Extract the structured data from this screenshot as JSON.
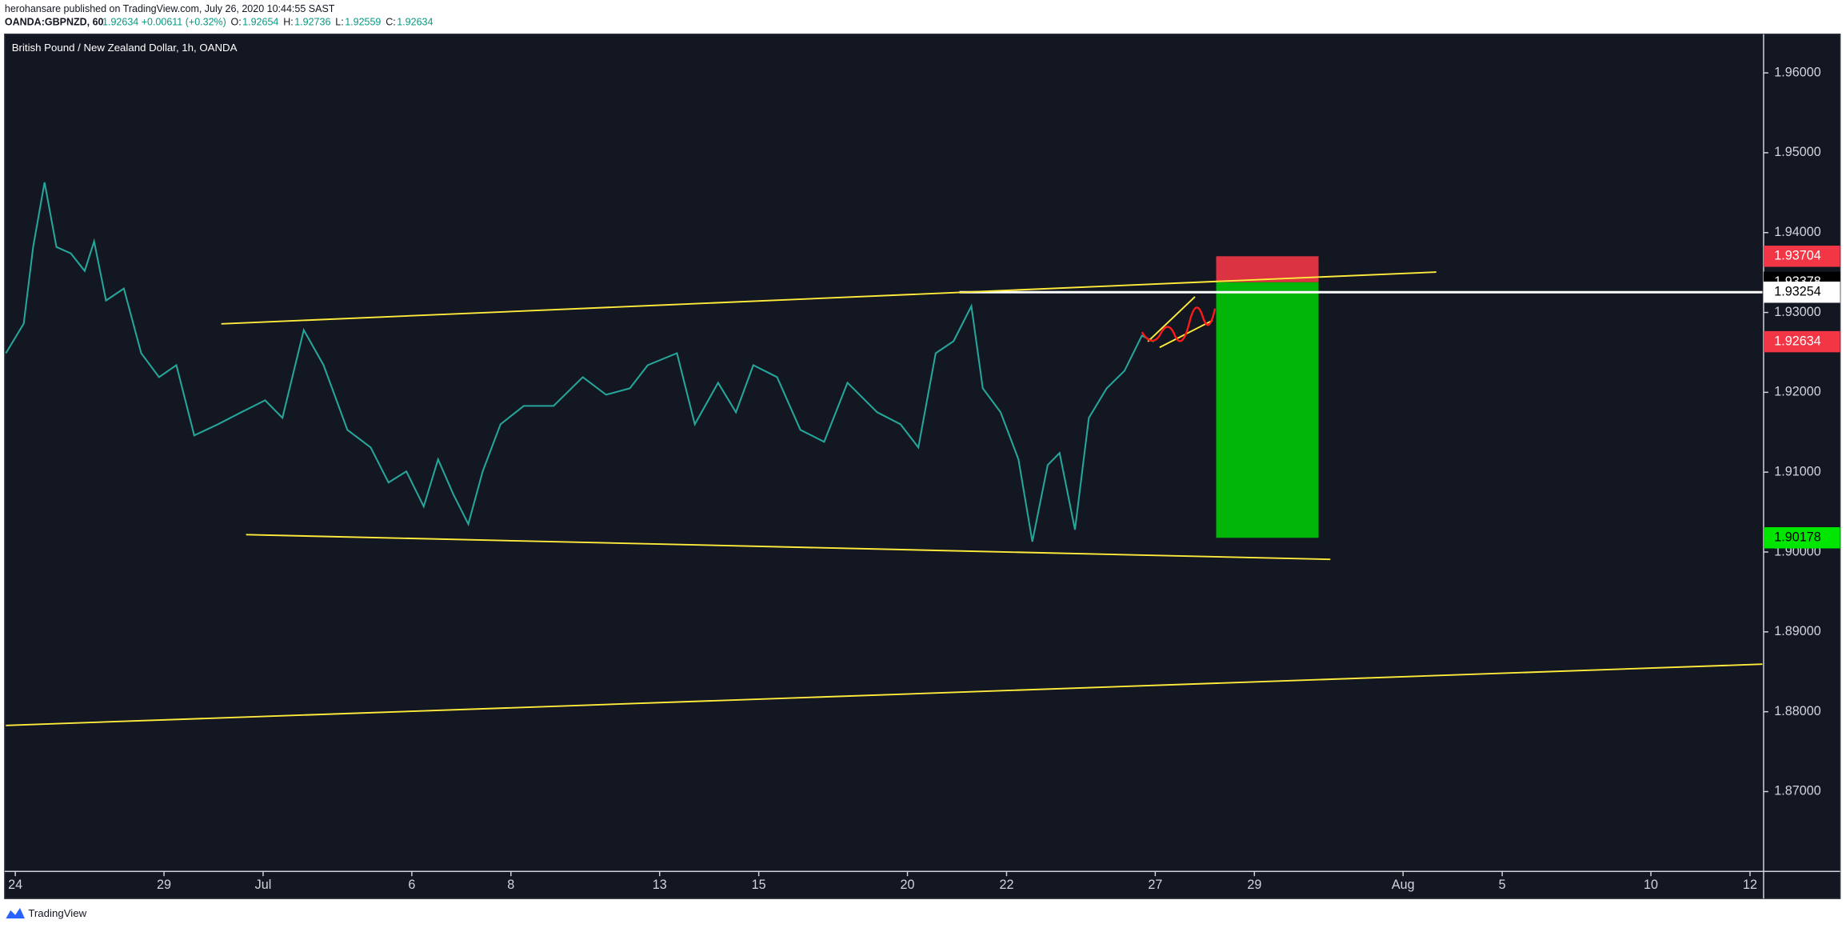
{
  "header": {
    "author_line": "herohansare published on TradingView.com, July 26, 2020 10:44:55 SAST",
    "symbol": "OANDA:GBPNZD, 60",
    "quote": "1.92634 +0.00611 (+0.32%)",
    "ohlc": [
      {
        "label": "O:",
        "value": "1.92654"
      },
      {
        "label": "H:",
        "value": "1.92736"
      },
      {
        "label": "L:",
        "value": "1.92559"
      },
      {
        "label": "C:",
        "value": "1.92634"
      }
    ]
  },
  "footer": {
    "brand": "TradingView"
  },
  "chart_data": {
    "type": "line",
    "title": "British Pound / New Zealand Dollar, 1h, OANDA",
    "color": "#26a69a",
    "x": [
      -0.19,
      0.17,
      0.36,
      0.59,
      0.83,
      1.12,
      1.4,
      1.59,
      1.83,
      2.19,
      2.54,
      2.9,
      3.25,
      3.61,
      4.09,
      4.56,
      5.04,
      5.39,
      5.82,
      6.22,
      6.7,
      7.17,
      7.53,
      7.89,
      8.24,
      8.53,
      8.84,
      9.14,
      9.43,
      9.79,
      10.26,
      10.86,
      11.45,
      11.92,
      12.4,
      12.76,
      13.35,
      13.71,
      14.18,
      14.54,
      14.89,
      15.37,
      15.84,
      16.32,
      16.79,
      17.39,
      17.86,
      18.22,
      18.57,
      18.93,
      19.29,
      19.52,
      19.88,
      20.24,
      20.52,
      20.83,
      21.07,
      21.38,
      21.66,
      22.02,
      22.38,
      22.73,
      22.97
    ],
    "values": [
      1.9249,
      1.9286,
      1.9382,
      1.9463,
      1.9382,
      1.9374,
      1.9352,
      1.9389,
      1.9315,
      1.933,
      1.9249,
      1.9219,
      1.9234,
      1.9146,
      1.916,
      1.9175,
      1.919,
      1.9168,
      1.9278,
      1.9234,
      1.9153,
      1.9131,
      1.9087,
      1.9101,
      1.9057,
      1.9116,
      1.9072,
      1.9035,
      1.9101,
      1.916,
      1.9183,
      1.9183,
      1.9219,
      1.9197,
      1.9205,
      1.9234,
      1.9249,
      1.916,
      1.9212,
      1.9175,
      1.9234,
      1.9219,
      1.9153,
      1.9138,
      1.9212,
      1.9175,
      1.916,
      1.9131,
      1.9249,
      1.9264,
      1.9308,
      1.9205,
      1.9175,
      1.9116,
      1.9013,
      1.9109,
      1.9124,
      1.9028,
      1.9168,
      1.9205,
      1.9227,
      1.9271,
      1.92634
    ],
    "xlim": [
      -0.19,
      35.25
    ],
    "xticks": [
      {
        "value": 0,
        "label": "24"
      },
      {
        "value": 3,
        "label": "29"
      },
      {
        "value": 5,
        "label": "Jul"
      },
      {
        "value": 8,
        "label": "6"
      },
      {
        "value": 10,
        "label": "8"
      },
      {
        "value": 13,
        "label": "13"
      },
      {
        "value": 15,
        "label": "15"
      },
      {
        "value": 18,
        "label": "20"
      },
      {
        "value": 20,
        "label": "22"
      },
      {
        "value": 23,
        "label": "27"
      },
      {
        "value": 25,
        "label": "29"
      },
      {
        "value": 28,
        "label": "Aug"
      },
      {
        "value": 30,
        "label": "5"
      },
      {
        "value": 33,
        "label": "10"
      },
      {
        "value": 35,
        "label": "12"
      }
    ],
    "ylim": [
      1.86,
      1.9647
    ],
    "yticks": [
      {
        "value": 1.87,
        "label": "1.87000"
      },
      {
        "value": 1.88,
        "label": "1.88000"
      },
      {
        "value": 1.89,
        "label": "1.89000"
      },
      {
        "value": 1.9,
        "label": "1.90000"
      },
      {
        "value": 1.91,
        "label": "1.91000"
      },
      {
        "value": 1.92,
        "label": "1.92000"
      },
      {
        "value": 1.93,
        "label": "1.93000"
      },
      {
        "value": 1.94,
        "label": "1.94000"
      },
      {
        "value": 1.95,
        "label": "1.95000"
      },
      {
        "value": 1.96,
        "label": "1.96000"
      }
    ],
    "grid": false,
    "price_labels": [
      {
        "value": 1.93704,
        "color": "#f23645",
        "text_color": "#ffffff"
      },
      {
        "value": 1.93378,
        "color": "#000000",
        "text_color": "#ffffff"
      },
      {
        "value": 1.93254,
        "color": "#ffffff",
        "text_color": "#000000"
      },
      {
        "value": 1.92634,
        "color": "#f23645",
        "text_color": "#ffffff"
      },
      {
        "value": 1.90178,
        "color": "#00e600",
        "text_color": "#000000"
      }
    ]
  }
}
